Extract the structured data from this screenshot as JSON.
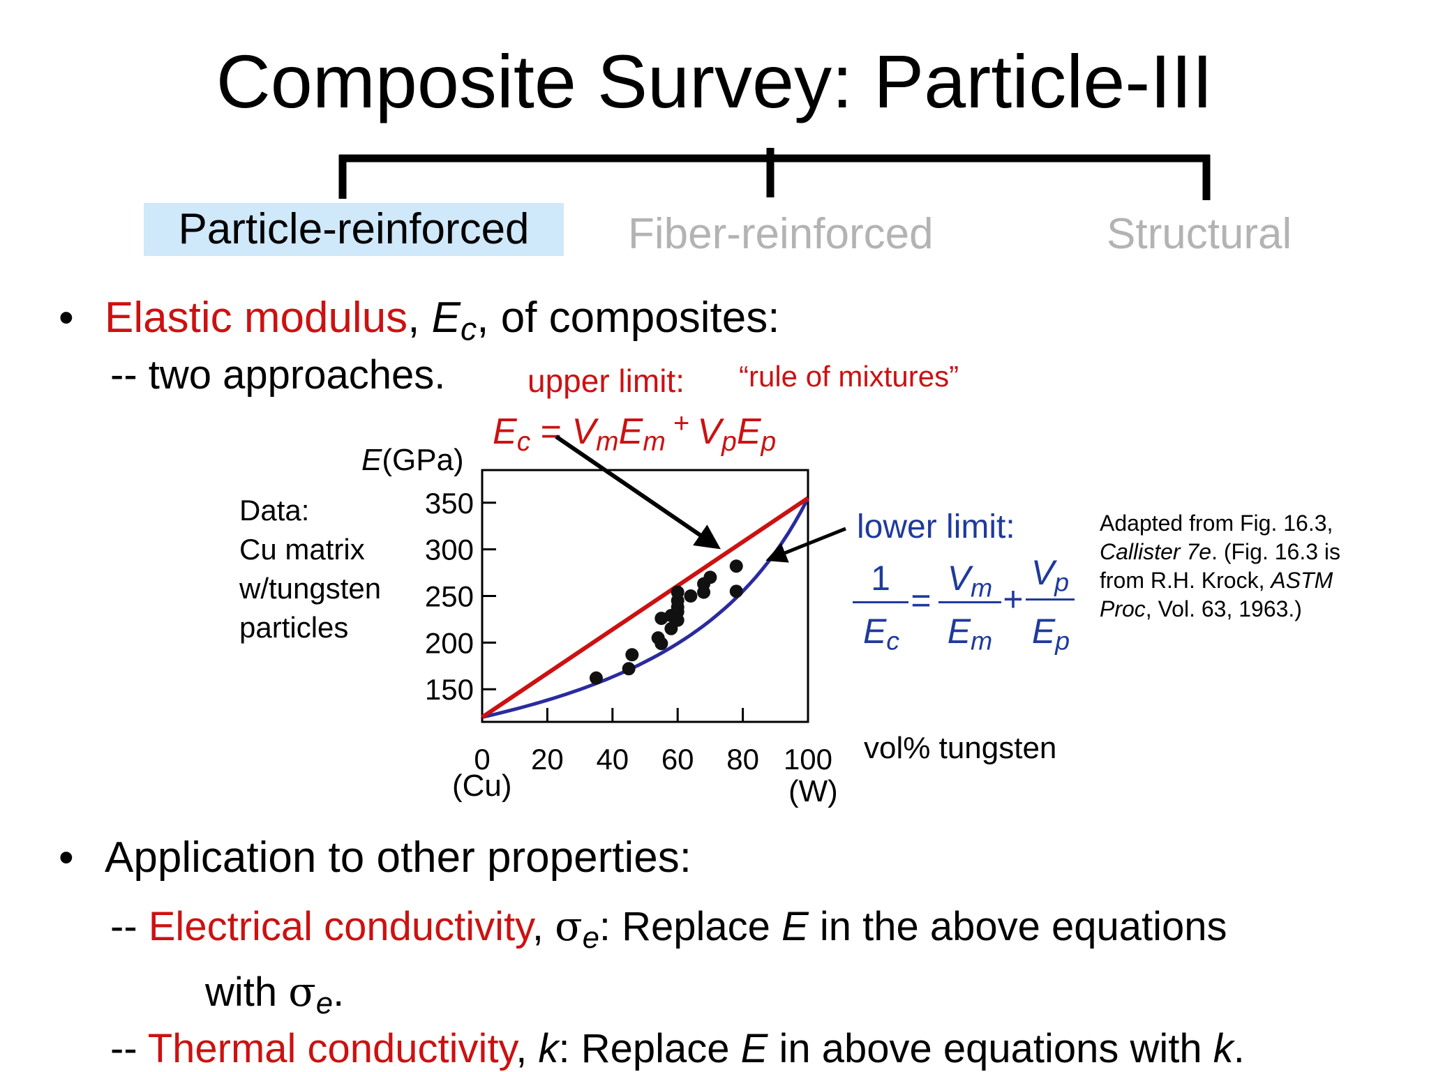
{
  "title": "Composite Survey: Particle-III",
  "tabs": {
    "particle": "Particle-reinforced",
    "fiber": "Fiber-reinforced",
    "structural": "Structural"
  },
  "bullet1": {
    "highlight": "Elastic modulus",
    "sep": ",",
    "symbol": "E",
    "symbol_sub": "c",
    "rest": ", of composites:",
    "sub": "-- two approaches."
  },
  "upper": {
    "label": "upper  limit:",
    "quote": "“rule of mixtures”",
    "eq": {
      "lhs": "E",
      "lhs_sub": "c",
      "eqsign": " = ",
      "t1a": "V",
      "t1a_sub": "m",
      "t1b": "E",
      "t1b_sub": "m",
      "plus": " + ",
      "t2a": "V",
      "t2a_sub": "p",
      "t2b": "E",
      "t2b_sub": "p"
    }
  },
  "lower": {
    "label": "lower limit:",
    "one": "1",
    "ec": "E",
    "ec_sub": "c",
    "eq": "=",
    "vm": "V",
    "vm_sub": "m",
    "em": "E",
    "em_sub": "m",
    "plus": "+",
    "vp": "V",
    "vp_sub": "p",
    "ep": "E",
    "ep_sub": "p"
  },
  "data_note": {
    "l1": "Data:",
    "l2": "Cu matrix",
    "l3": "w/tungsten",
    "l4": "particles"
  },
  "citation": {
    "l1": "Adapted from Fig. 16.3,",
    "l2_it": "Callister 7e",
    "l2_rest": ".  (Fig. 16.3 is",
    "l3": "from R.H. Krock, ",
    "l3_it": "ASTM",
    "l4_it": "Proc",
    "l4_rest": ", Vol. 63, 1963.)"
  },
  "chart_data": {
    "type": "scatter",
    "ylabel_sym": "E",
    "ylabel_unit": "(GPa)",
    "xlabel": "vol% tungsten",
    "x_end_labels": [
      "(Cu)",
      "(W)"
    ],
    "x_ticks": [
      "0",
      "20",
      "40",
      "60",
      "80",
      "100"
    ],
    "y_ticks": [
      "350",
      "300",
      "250",
      "200",
      "150"
    ],
    "x_tick_values": [
      0,
      20,
      40,
      60,
      80,
      100
    ],
    "y_tick_values": [
      350,
      300,
      250,
      200,
      150
    ],
    "xlim": [
      0,
      100
    ],
    "ylim": [
      115,
      385
    ],
    "Em": 120,
    "Ep": 355,
    "points": [
      [
        35,
        162
      ],
      [
        45,
        172
      ],
      [
        46,
        187
      ],
      [
        54,
        205
      ],
      [
        55,
        199
      ],
      [
        55,
        226
      ],
      [
        58,
        229
      ],
      [
        58,
        215
      ],
      [
        60,
        233
      ],
      [
        60,
        224
      ],
      [
        60,
        238
      ],
      [
        60,
        245
      ],
      [
        60,
        254
      ],
      [
        64,
        250
      ],
      [
        68,
        254
      ],
      [
        68,
        263
      ],
      [
        70,
        270
      ],
      [
        78,
        282
      ],
      [
        78,
        255
      ]
    ]
  },
  "bullet2": {
    "text": "Application to other properties:",
    "ec_dash": "-- ",
    "ec_highlight": "Electrical conductivity",
    "ec_sep": ", ",
    "ec_sym": "σ",
    "ec_sym_sub": "e",
    "ec_rest1": ":  Replace ",
    "ec_E": "E",
    "ec_rest2": " in the above equations",
    "ec_cont1": "with ",
    "ec_cont_sym": "σ",
    "ec_cont_sub": "e",
    "ec_cont_end": ".",
    "tc_dash": "-- ",
    "tc_highlight": "Thermal conductivity",
    "tc_sep": ", ",
    "tc_k": "k",
    "tc_rest1": ":  Replace ",
    "tc_E": "E",
    "tc_rest2": " in above equations with ",
    "tc_k2": "k",
    "tc_end": "."
  }
}
